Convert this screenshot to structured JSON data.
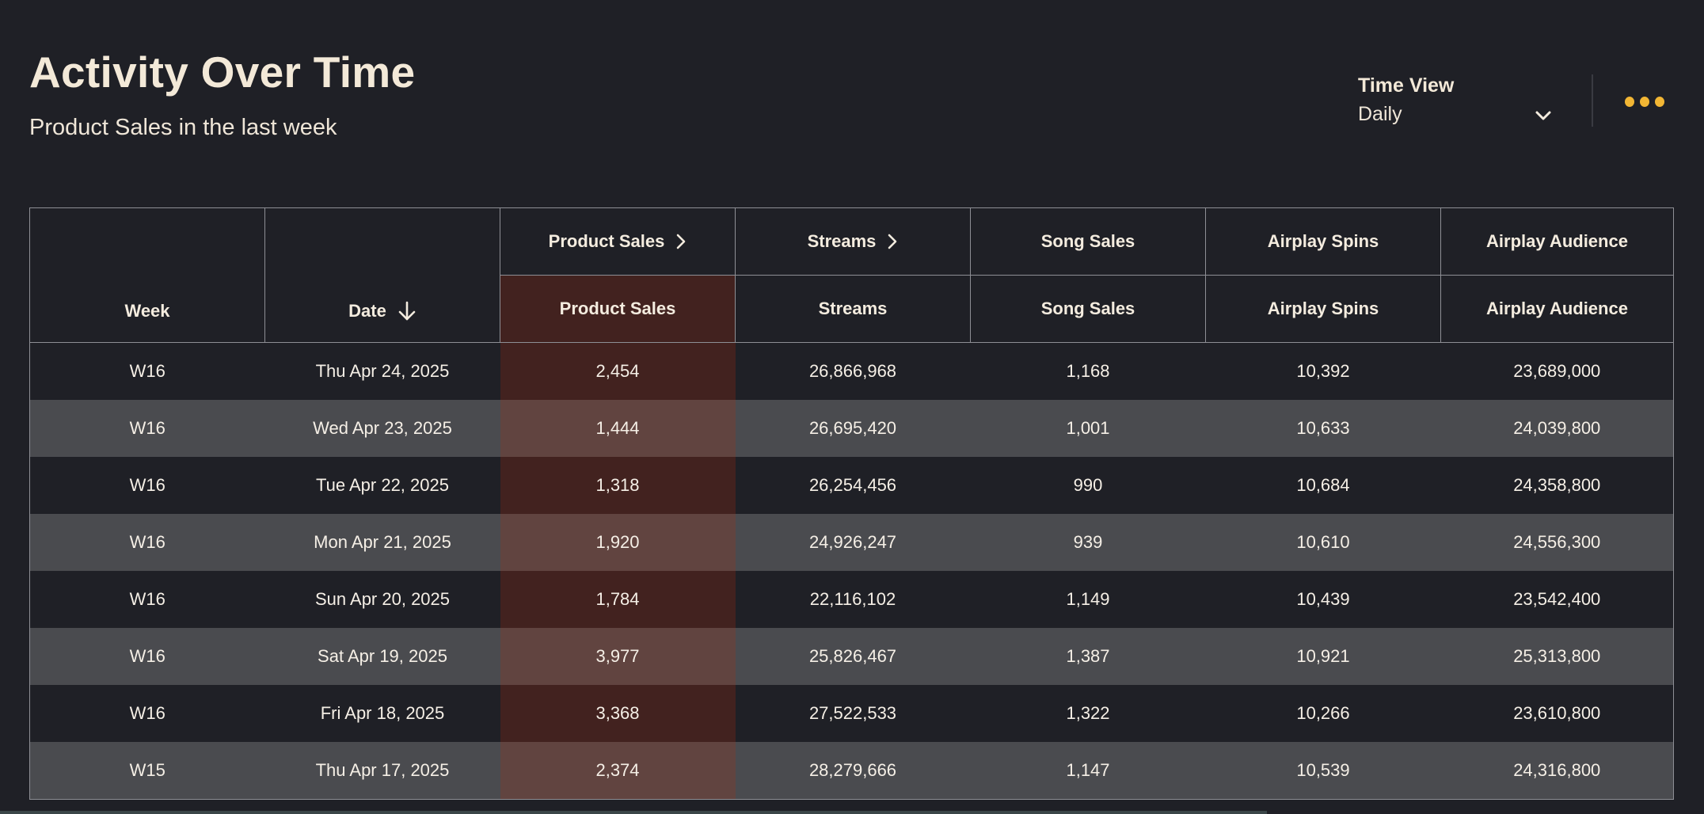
{
  "header": {
    "title": "Activity Over Time",
    "subtitle": "Product Sales in the last week"
  },
  "controls": {
    "time_view_label": "Time View",
    "time_view_value": "Daily",
    "dropdown_icon": "chevron-down-icon",
    "more_icon": "more-dots-icon",
    "accent_color": "#f2b634"
  },
  "table": {
    "group_headers": [
      "Product Sales",
      "Streams",
      "Song Sales",
      "Airplay Spins",
      "Airplay Audience"
    ],
    "columns": [
      "Week",
      "Date",
      "Product Sales",
      "Streams",
      "Song Sales",
      "Airplay Spins",
      "Airplay Audience"
    ],
    "sort_icon": "arrow-down-icon",
    "expand_icon": "chevron-right-icon",
    "highlight_color": "#42221f",
    "rows": [
      [
        "W16",
        "Thu Apr 24, 2025",
        "2,454",
        "26,866,968",
        "1,168",
        "10,392",
        "23,689,000"
      ],
      [
        "W16",
        "Wed Apr 23, 2025",
        "1,444",
        "26,695,420",
        "1,001",
        "10,633",
        "24,039,800"
      ],
      [
        "W16",
        "Tue Apr 22, 2025",
        "1,318",
        "26,254,456",
        "990",
        "10,684",
        "24,358,800"
      ],
      [
        "W16",
        "Mon Apr 21, 2025",
        "1,920",
        "24,926,247",
        "939",
        "10,610",
        "24,556,300"
      ],
      [
        "W16",
        "Sun Apr 20, 2025",
        "1,784",
        "22,116,102",
        "1,149",
        "10,439",
        "23,542,400"
      ],
      [
        "W16",
        "Sat Apr 19, 2025",
        "3,977",
        "25,826,467",
        "1,387",
        "10,921",
        "25,313,800"
      ],
      [
        "W16",
        "Fri Apr 18, 2025",
        "3,368",
        "27,522,533",
        "1,322",
        "10,266",
        "23,610,800"
      ],
      [
        "W15",
        "Thu Apr 17, 2025",
        "2,374",
        "28,279,666",
        "1,147",
        "10,539",
        "24,316,800"
      ]
    ]
  }
}
